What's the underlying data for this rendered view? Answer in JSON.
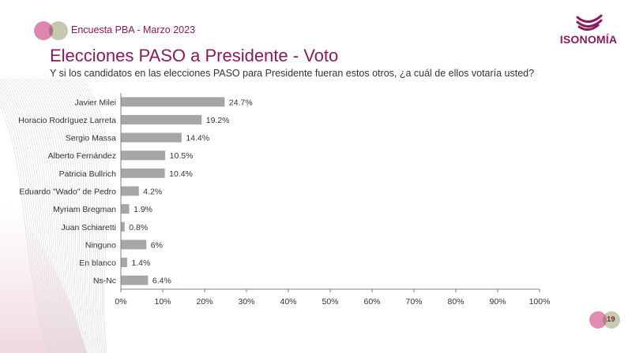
{
  "header": {
    "survey_label": "Encuesta PBA - Marzo 2023",
    "brand_name": "ISONOMÍA"
  },
  "slide": {
    "title": "Elecciones PASO a Presidente - Voto",
    "subtitle": "Y si los candidatos en las elecciones PASO para Presidente fueran estos otros, ¿a cuál de ellos votaría usted?",
    "page_number": "19"
  },
  "colors": {
    "accent": "#8a1a5b",
    "bar": "#a6a6a6",
    "circle_pink": "#d97aa6",
    "circle_sage": "#b9c0a0"
  },
  "chart_data": {
    "type": "bar",
    "orientation": "horizontal",
    "title": "",
    "xlabel": "",
    "ylabel": "",
    "xlim": [
      0,
      100
    ],
    "grid": false,
    "categories": [
      "Javier Milei",
      "Horacio Rodríguez Larreta",
      "Sergio Massa",
      "Alberto Fernández",
      "Patricia Bullrich",
      "Eduardo \"Wado\" de Pedro",
      "Myriam Bregman",
      "Juan Schiaretti",
      "Ninguno",
      "En blanco",
      "Ns-Nc"
    ],
    "values": [
      24.7,
      19.2,
      14.4,
      10.5,
      10.4,
      4.2,
      1.9,
      0.8,
      6,
      1.4,
      6.4
    ],
    "data_labels": [
      "24.7%",
      "19.2%",
      "14.4%",
      "10.5%",
      "10.4%",
      "4.2%",
      "1.9%",
      "0.8%",
      "6%",
      "1.4%",
      "6.4%"
    ],
    "x_ticks": [
      0,
      10,
      20,
      30,
      40,
      50,
      60,
      70,
      80,
      90,
      100
    ],
    "x_tick_labels": [
      "0%",
      "10%",
      "20%",
      "30%",
      "40%",
      "50%",
      "60%",
      "70%",
      "80%",
      "90%",
      "100%"
    ]
  }
}
